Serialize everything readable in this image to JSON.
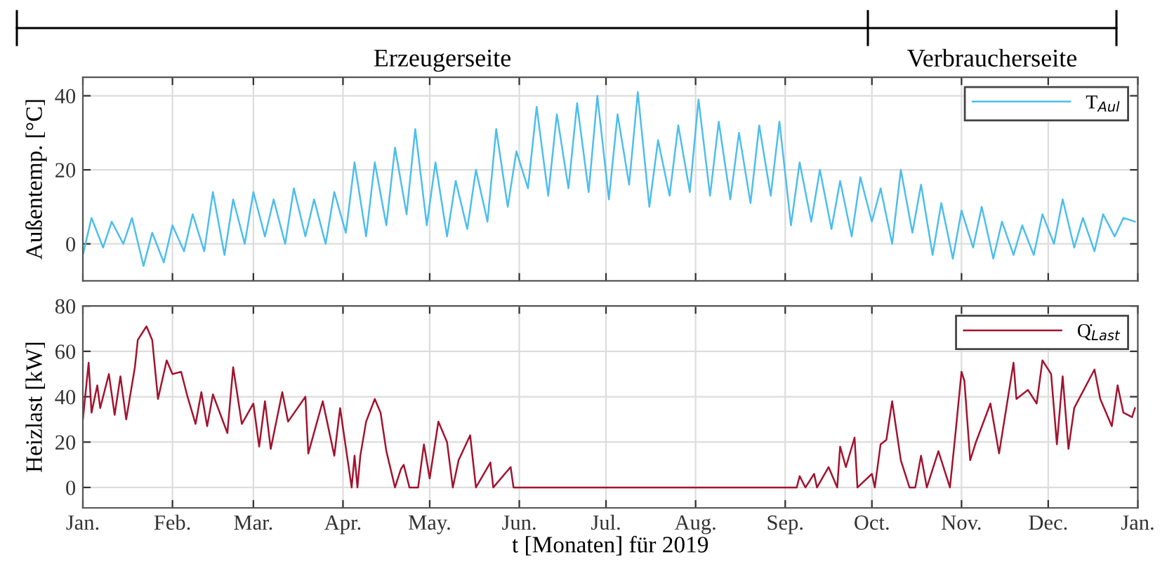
{
  "chart_data": [
    {
      "type": "line",
      "ylabel": "Außentemp. [°C]",
      "annotations": [
        "Erzeugerseite",
        "Verbraucherseite"
      ],
      "grid": true,
      "legend": "top right",
      "tick_labels": "y",
      "xlim": [
        "2019-01-01",
        "2020-01-01"
      ],
      "xticks": [
        {
          "value": "2019-01-01",
          "label": null
        },
        {
          "value": "2019-02-01",
          "label": null
        },
        {
          "value": "2019-03-01",
          "label": null
        },
        {
          "value": "2019-04-01",
          "label": null
        },
        {
          "value": "2019-05-01",
          "label": null
        },
        {
          "value": "2019-06-01",
          "label": null
        },
        {
          "value": "2019-07-01",
          "label": null
        },
        {
          "value": "2019-08-01",
          "label": null
        },
        {
          "value": "2019-09-01",
          "label": null
        },
        {
          "value": "2019-10-01",
          "label": null
        },
        {
          "value": "2019-11-01",
          "label": null
        },
        {
          "value": "2019-12-01",
          "label": null
        },
        {
          "value": "2020-01-01",
          "label": null
        }
      ],
      "ylim": [
        -10,
        45
      ],
      "yticks": [
        0,
        20,
        40
      ],
      "series": [
        {
          "name": "T$_{Aul}$",
          "color": "#4dbeee",
          "x": [
            "2019-01-01",
            "2019-01-04",
            "2019-01-08",
            "2019-01-11",
            "2019-01-15",
            "2019-01-18",
            "2019-01-22",
            "2019-01-25",
            "2019-01-29",
            "2019-02-01",
            "2019-02-05",
            "2019-02-08",
            "2019-02-12",
            "2019-02-15",
            "2019-02-19",
            "2019-02-22",
            "2019-02-26",
            "2019-03-01",
            "2019-03-05",
            "2019-03-08",
            "2019-03-12",
            "2019-03-15",
            "2019-03-19",
            "2019-03-22",
            "2019-03-26",
            "2019-03-29",
            "2019-04-02",
            "2019-04-05",
            "2019-04-09",
            "2019-04-12",
            "2019-04-16",
            "2019-04-19",
            "2019-04-23",
            "2019-04-26",
            "2019-04-30",
            "2019-05-03",
            "2019-05-07",
            "2019-05-10",
            "2019-05-14",
            "2019-05-17",
            "2019-05-21",
            "2019-05-24",
            "2019-05-28",
            "2019-05-31",
            "2019-06-04",
            "2019-06-07",
            "2019-06-11",
            "2019-06-14",
            "2019-06-18",
            "2019-06-21",
            "2019-06-25",
            "2019-06-28",
            "2019-07-02",
            "2019-07-05",
            "2019-07-09",
            "2019-07-12",
            "2019-07-16",
            "2019-07-19",
            "2019-07-23",
            "2019-07-26",
            "2019-07-30",
            "2019-08-02",
            "2019-08-06",
            "2019-08-09",
            "2019-08-13",
            "2019-08-16",
            "2019-08-20",
            "2019-08-23",
            "2019-08-27",
            "2019-08-30",
            "2019-09-03",
            "2019-09-06",
            "2019-09-10",
            "2019-09-13",
            "2019-09-17",
            "2019-09-20",
            "2019-09-24",
            "2019-09-27",
            "2019-10-01",
            "2019-10-04",
            "2019-10-08",
            "2019-10-11",
            "2019-10-15",
            "2019-10-18",
            "2019-10-22",
            "2019-10-25",
            "2019-10-29",
            "2019-11-01",
            "2019-11-05",
            "2019-11-08",
            "2019-11-12",
            "2019-11-15",
            "2019-11-19",
            "2019-11-22",
            "2019-11-26",
            "2019-11-29",
            "2019-12-03",
            "2019-12-06",
            "2019-12-10",
            "2019-12-13",
            "2019-12-17",
            "2019-12-20",
            "2019-12-24",
            "2019-12-27",
            "2019-12-31"
          ],
          "values": [
            -3,
            7,
            -1,
            6,
            0,
            7,
            -6,
            3,
            -5,
            5,
            -2,
            8,
            -2,
            14,
            -3,
            12,
            0,
            14,
            2,
            12,
            0,
            15,
            2,
            12,
            0,
            14,
            3,
            22,
            2,
            22,
            5,
            26,
            8,
            31,
            5,
            22,
            2,
            17,
            4,
            20,
            6,
            31,
            10,
            25,
            15,
            37,
            13,
            35,
            15,
            38,
            14,
            40,
            12,
            35,
            16,
            41,
            10,
            28,
            13,
            32,
            14,
            39,
            13,
            33,
            12,
            30,
            11,
            32,
            13,
            33,
            5,
            22,
            6,
            20,
            4,
            17,
            2,
            18,
            6,
            15,
            0,
            20,
            3,
            16,
            -3,
            11,
            -4,
            9,
            -1,
            10,
            -4,
            6,
            -3,
            5,
            -3,
            8,
            0,
            12,
            -1,
            7,
            -2,
            8,
            2,
            7,
            6
          ]
        }
      ]
    },
    {
      "type": "line",
      "ylabel": "Heizlast [kW]",
      "xlabel": "t [Monaten] für 2019",
      "grid": true,
      "legend": "top right",
      "xlim": [
        "2019-01-01",
        "2020-01-01"
      ],
      "xticks": [
        {
          "value": "2019-01-01",
          "label": "Jan."
        },
        {
          "value": "2019-02-01",
          "label": "Feb."
        },
        {
          "value": "2019-03-01",
          "label": "Mar."
        },
        {
          "value": "2019-04-01",
          "label": "Apr."
        },
        {
          "value": "2019-05-01",
          "label": "May."
        },
        {
          "value": "2019-06-01",
          "label": "Jun."
        },
        {
          "value": "2019-07-01",
          "label": "Jul."
        },
        {
          "value": "2019-08-01",
          "label": "Aug."
        },
        {
          "value": "2019-09-01",
          "label": "Sep."
        },
        {
          "value": "2019-10-01",
          "label": "Oct."
        },
        {
          "value": "2019-11-01",
          "label": "Nov."
        },
        {
          "value": "2019-12-01",
          "label": "Dec."
        },
        {
          "value": "2020-01-01",
          "label": "Jan."
        }
      ],
      "ylim": [
        -9,
        80
      ],
      "yticks": [
        0,
        20,
        40,
        60,
        80
      ],
      "series": [
        {
          "name": "Q̇$_{Last}$",
          "color": "#a2142f",
          "x": [
            "2019-01-01",
            "2019-01-03",
            "2019-01-04",
            "2019-01-06",
            "2019-01-07",
            "2019-01-10",
            "2019-01-12",
            "2019-01-14",
            "2019-01-16",
            "2019-01-19",
            "2019-01-20",
            "2019-01-23",
            "2019-01-25",
            "2019-01-27",
            "2019-01-30",
            "2019-02-01",
            "2019-02-04",
            "2019-02-06",
            "2019-02-09",
            "2019-02-11",
            "2019-02-13",
            "2019-02-15",
            "2019-02-20",
            "2019-02-22",
            "2019-02-25",
            "2019-03-01",
            "2019-03-03",
            "2019-03-05",
            "2019-03-07",
            "2019-03-11",
            "2019-03-13",
            "2019-03-19",
            "2019-03-20",
            "2019-03-25",
            "2019-03-29",
            "2019-03-31",
            "2019-04-04",
            "2019-04-05",
            "2019-04-06",
            "2019-04-07",
            "2019-04-09",
            "2019-04-12",
            "2019-04-14",
            "2019-04-16",
            "2019-04-19",
            "2019-04-21",
            "2019-04-22",
            "2019-04-24",
            "2019-04-27",
            "2019-04-29",
            "2019-05-01",
            "2019-05-04",
            "2019-05-07",
            "2019-05-09",
            "2019-05-11",
            "2019-05-15",
            "2019-05-17",
            "2019-05-22",
            "2019-05-23",
            "2019-05-29",
            "2019-05-30",
            "2019-09-05",
            "2019-09-06",
            "2019-09-08",
            "2019-09-11",
            "2019-09-12",
            "2019-09-16",
            "2019-09-19",
            "2019-09-20",
            "2019-09-22",
            "2019-09-25",
            "2019-09-26",
            "2019-10-01",
            "2019-10-02",
            "2019-10-04",
            "2019-10-06",
            "2019-10-08",
            "2019-10-11",
            "2019-10-14",
            "2019-10-16",
            "2019-10-18",
            "2019-10-20",
            "2019-10-24",
            "2019-10-28",
            "2019-10-30",
            "2019-11-01",
            "2019-11-02",
            "2019-11-04",
            "2019-11-06",
            "2019-11-11",
            "2019-11-14",
            "2019-11-19",
            "2019-11-20",
            "2019-11-24",
            "2019-11-27",
            "2019-11-29",
            "2019-12-02",
            "2019-12-04",
            "2019-12-06",
            "2019-12-08",
            "2019-12-10",
            "2019-12-17",
            "2019-12-19",
            "2019-12-23",
            "2019-12-25",
            "2019-12-27",
            "2019-12-30",
            "2019-12-31"
          ],
          "values": [
            30,
            55,
            33,
            45,
            35,
            50,
            32,
            49,
            30,
            53,
            65,
            71,
            65,
            39,
            56,
            50,
            51,
            41,
            28,
            42,
            27,
            41,
            24,
            53,
            28,
            37,
            18,
            38,
            17,
            42,
            29,
            40,
            15,
            38,
            14,
            35,
            0,
            14,
            0,
            14,
            29,
            39,
            33,
            16,
            0,
            8,
            10,
            0,
            0,
            19,
            4,
            29,
            20,
            0,
            12,
            23,
            0,
            11,
            0,
            9,
            0,
            0,
            5,
            0,
            6,
            0,
            9,
            0,
            18,
            9,
            22,
            0,
            6,
            0,
            19,
            21,
            38,
            12,
            0,
            0,
            14,
            0,
            16,
            0,
            25,
            51,
            47,
            12,
            20,
            37,
            15,
            55,
            39,
            43,
            37,
            56,
            50,
            19,
            49,
            17,
            35,
            52,
            39,
            27,
            45,
            33,
            31,
            35
          ]
        }
      ]
    }
  ]
}
